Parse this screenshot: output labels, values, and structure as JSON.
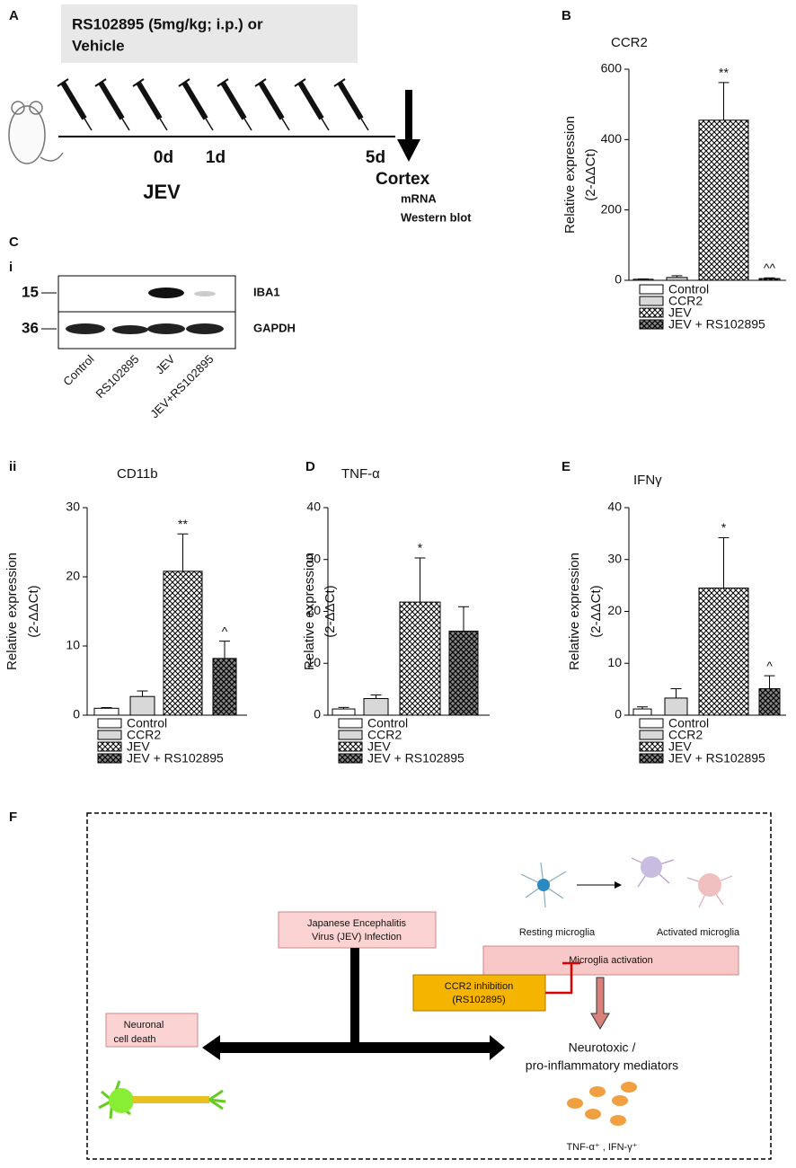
{
  "chart_data": [
    {
      "type": "bar",
      "panel": "B",
      "title": "CCR2",
      "ylabel": [
        "Relative expression",
        "(2-ΔΔCt)"
      ],
      "categories": [
        "Control",
        "CCR2",
        "JEV",
        "JEV + RS102895"
      ],
      "values": [
        3,
        8,
        455,
        5
      ],
      "errors": [
        1,
        5,
        107,
        2
      ],
      "annotations": [
        {
          "category": "JEV",
          "text": "**"
        },
        {
          "category": "JEV + RS102895",
          "text": "^^"
        }
      ],
      "ylim": [
        0,
        600
      ],
      "yticks": [
        0,
        200,
        400,
        600
      ]
    },
    {
      "type": "bar",
      "panel": "ii",
      "title": "CD11b",
      "ylabel": [
        "Relative expression",
        "(2-ΔΔCt)"
      ],
      "categories": [
        "Control",
        "CCR2",
        "JEV",
        "JEV + RS102895"
      ],
      "values": [
        1,
        2.7,
        20.8,
        8.2
      ],
      "errors": [
        0.1,
        0.8,
        5.4,
        2.5
      ],
      "annotations": [
        {
          "category": "JEV",
          "text": "**"
        },
        {
          "category": "JEV + RS102895",
          "text": "^"
        }
      ],
      "ylim": [
        0,
        30
      ],
      "yticks": [
        0,
        10,
        20,
        30
      ]
    },
    {
      "type": "bar",
      "panel": "D",
      "title": "TNF-α",
      "ylabel": [
        "Relative expression",
        "(2-ΔΔCt)"
      ],
      "categories": [
        "Control",
        "CCR2",
        "JEV",
        "JEV + RS102895"
      ],
      "values": [
        1.2,
        3.2,
        21.8,
        16.2
      ],
      "errors": [
        0.3,
        0.7,
        8.5,
        4.7
      ],
      "annotations": [
        {
          "category": "JEV",
          "text": "*"
        }
      ],
      "ylim": [
        0,
        40
      ],
      "yticks": [
        0,
        10,
        20,
        30,
        40
      ]
    },
    {
      "type": "bar",
      "panel": "E",
      "title": "IFNγ",
      "ylabel": [
        "Relative expression",
        "(2-ΔΔCt)"
      ],
      "categories": [
        "Control",
        "CCR2",
        "JEV",
        "JEV + RS102895"
      ],
      "values": [
        1.2,
        3.3,
        24.5,
        5.1
      ],
      "errors": [
        0.4,
        1.8,
        9.7,
        2.5
      ],
      "annotations": [
        {
          "category": "JEV",
          "text": "*"
        },
        {
          "category": "JEV + RS102895",
          "text": "^"
        }
      ],
      "ylim": [
        0,
        40
      ],
      "yticks": [
        0,
        10,
        20,
        30,
        40
      ]
    }
  ],
  "panel_a": {
    "label": "A",
    "treatment": [
      "RS102895 (5mg/kg; i.p.) or",
      "Vehicle"
    ],
    "days": [
      "0d",
      "1d",
      "5d"
    ],
    "infection": "JEV",
    "target": "Cortex",
    "assays": [
      "mRNA",
      "Western blot"
    ]
  },
  "panel_c": {
    "label": "C",
    "sublabel": "i",
    "markers": [
      "15",
      "36"
    ],
    "proteins": [
      "IBA1",
      "GAPDH"
    ],
    "lanes": [
      "Control",
      "RS102895",
      "JEV",
      "JEV+RS102895"
    ]
  },
  "panel_f": {
    "label": "F",
    "infection": [
      "Japanese  Encephalitis",
      "Virus (JEV) Infection"
    ],
    "resting": "Resting microglia",
    "activated": "Activated microglia",
    "activation": "Microglia activation",
    "inhibition": [
      "CCR2 inhibition",
      "(RS102895)"
    ],
    "death": [
      "Neuronal",
      "cell death"
    ],
    "mediators": [
      "Neurotoxic /",
      "pro-inflammatory mediators"
    ],
    "cytokines": "TNF-α⁺ , IFN-γ⁺"
  }
}
